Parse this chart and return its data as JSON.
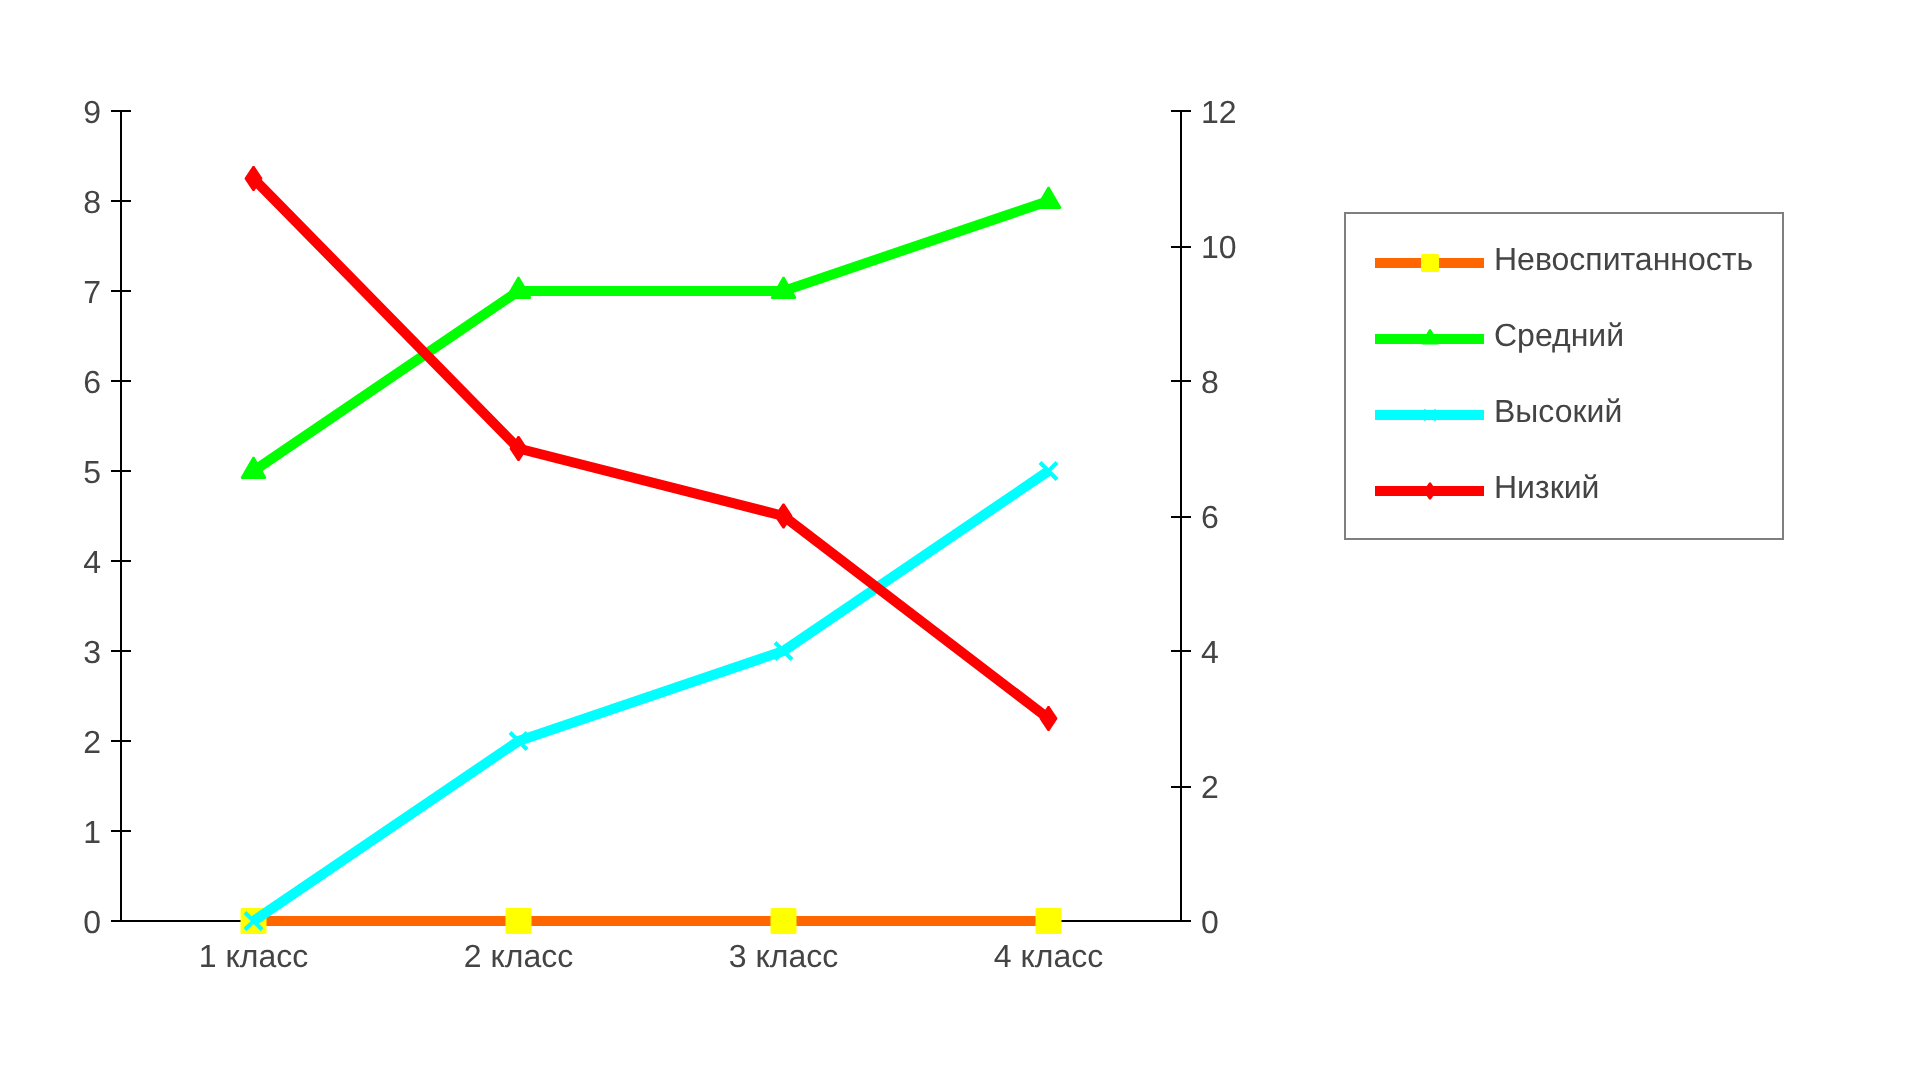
{
  "chart_data": {
    "type": "line",
    "categories": [
      "1 класс",
      "2 класс",
      "3 класс",
      "4 класс"
    ],
    "ylim": [
      0,
      9
    ],
    "yticks": [
      0,
      1,
      2,
      3,
      4,
      5,
      6,
      7,
      8,
      9
    ],
    "y2lim": [
      0,
      12
    ],
    "y2ticks": [
      0,
      2,
      4,
      6,
      8,
      10,
      12
    ],
    "grid": false,
    "legend": "right",
    "line_style": "solid",
    "series": [
      {
        "name": "Невоспитанность",
        "color": "#ff6600",
        "marker": "square",
        "values": [
          0,
          0,
          0,
          0
        ]
      },
      {
        "name": "Средний",
        "color": "#00ff00",
        "marker": "triangle",
        "values": [
          5,
          7,
          7,
          8
        ]
      },
      {
        "name": "Высокий",
        "color": "#00ffff",
        "marker": "cross",
        "values": [
          0,
          2,
          3,
          5
        ]
      },
      {
        "name": "Низкий",
        "color": "#ff0000",
        "marker": "diamond",
        "axis": "y2",
        "values": [
          11,
          7,
          6,
          3
        ]
      }
    ]
  }
}
